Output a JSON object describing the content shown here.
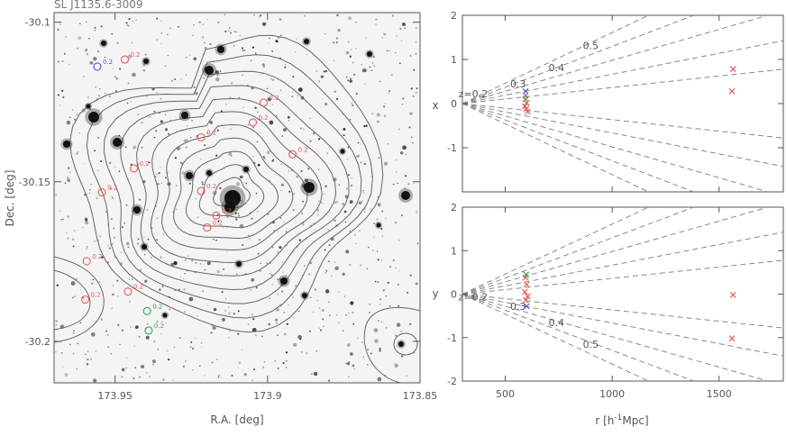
{
  "colors": {
    "red": "#e85a5a",
    "green": "#2ea84a",
    "blue": "#4a59d9",
    "axis": "#555555",
    "dash": "#888888",
    "contour": "#666666"
  },
  "chart_data": [
    {
      "type": "scatter",
      "title": "SL J1135.6-3009",
      "xlabel": "R.A. [deg]",
      "ylabel": "Dec. [deg]",
      "xlim": [
        173.97,
        173.85
      ],
      "ylim": [
        -30.213,
        -30.097
      ],
      "x_ticks": [
        173.95,
        173.9,
        173.85
      ],
      "x_tick_labels": [
        "173.95",
        "173.9",
        "173.85"
      ],
      "y_ticks": [
        -30.2,
        -30.15,
        -30.1
      ],
      "y_tick_labels": [
        "-30.2",
        "-30.15",
        "-30.1"
      ],
      "background": "optical image with overlaid contours",
      "markers": [
        {
          "ra": 173.9598,
          "dec": -30.1869,
          "color": "red",
          "label": "0.2"
        },
        {
          "ra": 173.939,
          "dec": -30.1966,
          "color": "green",
          "label": "0.2"
        },
        {
          "ra": 173.9395,
          "dec": -30.1905,
          "color": "green",
          "label": "0.2"
        },
        {
          "ra": 173.9458,
          "dec": -30.1844,
          "color": "red",
          "label": "0.2"
        },
        {
          "ra": 173.9593,
          "dec": -30.1749,
          "color": "red",
          "label": "0.2"
        },
        {
          "ra": 173.9198,
          "dec": -30.1643,
          "color": "red",
          "label": "0.2"
        },
        {
          "ra": 173.9168,
          "dec": -30.1606,
          "color": "red",
          "label": "0.2"
        },
        {
          "ra": 173.9218,
          "dec": -30.1529,
          "color": "red",
          "label": "0.2"
        },
        {
          "ra": 173.9543,
          "dec": -30.1533,
          "color": "red",
          "label": "0.2"
        },
        {
          "ra": 173.9438,
          "dec": -30.1458,
          "color": "red",
          "label": "0.2"
        },
        {
          "ra": 173.8918,
          "dec": -30.1414,
          "color": "red",
          "label": "0.2"
        },
        {
          "ra": 173.9218,
          "dec": -30.1361,
          "color": "red",
          "label": "0.2"
        },
        {
          "ra": 173.9048,
          "dec": -30.1314,
          "color": "red",
          "label": "0.2"
        },
        {
          "ra": 173.9013,
          "dec": -30.1252,
          "color": "red",
          "label": "0.2"
        },
        {
          "ra": 173.9468,
          "dec": -30.1117,
          "color": "red",
          "label": "0.2"
        },
        {
          "ra": 173.9558,
          "dec": -30.1139,
          "color": "blue",
          "label": "0.2"
        }
      ]
    },
    {
      "type": "scatter",
      "xlabel": "",
      "ylabel": "x",
      "xlim": [
        300,
        1800
      ],
      "ylim": [
        -2,
        2
      ],
      "y_ticks": [
        -2,
        -1,
        0,
        1,
        2
      ],
      "y_tick_labels": [
        "",
        "-1",
        "0",
        "1",
        "2"
      ],
      "cone_vertex": [
        300,
        0
      ],
      "redshift_lines": [
        {
          "z": 0.2,
          "label": "z=0.2",
          "slope": 0.00052
        },
        {
          "z": 0.3,
          "label": "0.3",
          "slope": 0.00095
        },
        {
          "z": 0.4,
          "label": "0.4",
          "slope": 0.0014
        },
        {
          "z": 0.5,
          "label": "0.5",
          "slope": 0.00185
        }
      ],
      "extra_line_slopes": [
        0.0023
      ],
      "points": [
        {
          "r": 595,
          "v": 0.28,
          "color": "blue"
        },
        {
          "r": 595,
          "v": 0.18,
          "color": "red"
        },
        {
          "r": 595,
          "v": 0.1,
          "color": "green"
        },
        {
          "r": 600,
          "v": 0.02,
          "color": "red"
        },
        {
          "r": 592,
          "v": -0.06,
          "color": "red"
        },
        {
          "r": 598,
          "v": -0.12,
          "color": "red"
        },
        {
          "r": 605,
          "v": -0.18,
          "color": "red"
        },
        {
          "r": 1565,
          "v": 0.78,
          "color": "red"
        },
        {
          "r": 1560,
          "v": 0.28,
          "color": "red"
        }
      ]
    },
    {
      "type": "scatter",
      "xlabel": "r [h^-1 Mpc]",
      "ylabel": "y",
      "xlim": [
        300,
        1800
      ],
      "ylim": [
        -2,
        2
      ],
      "x_ticks": [
        500,
        1000,
        1500
      ],
      "x_tick_labels": [
        "500",
        "1000",
        "1500"
      ],
      "y_ticks": [
        -2,
        -1,
        0,
        1,
        2
      ],
      "y_tick_labels": [
        "-2",
        "-1",
        "0",
        "1",
        "2"
      ],
      "cone_vertex": [
        300,
        0
      ],
      "redshift_lines": [
        {
          "z": 0.2,
          "label": "z=0.2",
          "slope": -0.00052
        },
        {
          "z": 0.3,
          "label": "0.3",
          "slope": -0.00095
        },
        {
          "z": 0.4,
          "label": "0.4",
          "slope": -0.0014
        },
        {
          "z": 0.5,
          "label": "0.5",
          "slope": -0.00185
        }
      ],
      "extra_line_slopes": [
        -0.0023
      ],
      "points": [
        {
          "r": 598,
          "v": 0.45,
          "color": "green"
        },
        {
          "r": 595,
          "v": 0.38,
          "color": "red"
        },
        {
          "r": 600,
          "v": 0.22,
          "color": "red"
        },
        {
          "r": 592,
          "v": 0.05,
          "color": "red"
        },
        {
          "r": 605,
          "v": -0.05,
          "color": "red"
        },
        {
          "r": 596,
          "v": -0.14,
          "color": "red"
        },
        {
          "r": 600,
          "v": -0.28,
          "color": "blue"
        },
        {
          "r": 1565,
          "v": -0.02,
          "color": "red"
        },
        {
          "r": 1560,
          "v": -1.02,
          "color": "red"
        }
      ]
    }
  ]
}
